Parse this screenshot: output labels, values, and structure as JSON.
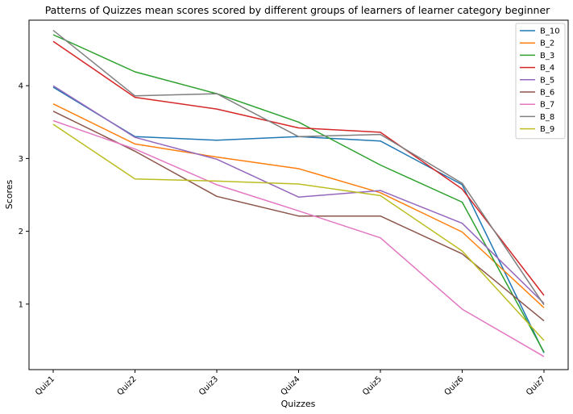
{
  "chart_data": {
    "type": "line",
    "title": "Patterns of Quizzes mean scores scored by different groups of learners of learner category beginner",
    "xlabel": "Quizzes",
    "ylabel": "Scores",
    "categories": [
      "Quiz1",
      "Quiz2",
      "Quiz3",
      "Quiz4",
      "Quiz5",
      "Quiz6",
      "Quiz7"
    ],
    "ylim": [
      0.1,
      4.9
    ],
    "yticks": [
      1,
      2,
      3,
      4
    ],
    "grid": false,
    "legend_position": "top-right",
    "series": [
      {
        "name": "B_10",
        "color": "#1f77b4",
        "values": [
          3.98,
          3.3,
          3.25,
          3.3,
          3.24,
          2.64,
          0.33
        ]
      },
      {
        "name": "B_2",
        "color": "#ff7f0e",
        "values": [
          3.75,
          3.2,
          3.02,
          2.86,
          2.53,
          1.99,
          0.95
        ]
      },
      {
        "name": "B_3",
        "color": "#2ca02c",
        "values": [
          4.7,
          4.19,
          3.89,
          3.5,
          2.91,
          2.4,
          0.34
        ]
      },
      {
        "name": "B_4",
        "color": "#d62728",
        "values": [
          4.61,
          3.84,
          3.68,
          3.42,
          3.36,
          2.58,
          1.12
        ]
      },
      {
        "name": "B_5",
        "color": "#9467bd",
        "values": [
          4.0,
          3.29,
          2.99,
          2.47,
          2.56,
          2.11,
          1.01
        ]
      },
      {
        "name": "B_6",
        "color": "#8c564b",
        "values": [
          3.65,
          3.1,
          2.48,
          2.21,
          2.21,
          1.69,
          0.77
        ]
      },
      {
        "name": "B_7",
        "color": "#e377c2",
        "values": [
          3.52,
          3.13,
          2.64,
          2.28,
          1.91,
          0.93,
          0.28
        ]
      },
      {
        "name": "B_8",
        "color": "#7f7f7f",
        "values": [
          4.76,
          3.86,
          3.89,
          3.3,
          3.33,
          2.66,
          0.99
        ]
      },
      {
        "name": "B_9",
        "color": "#bcbd22",
        "values": [
          3.47,
          2.72,
          2.69,
          2.65,
          2.49,
          1.73,
          0.5
        ]
      }
    ]
  }
}
